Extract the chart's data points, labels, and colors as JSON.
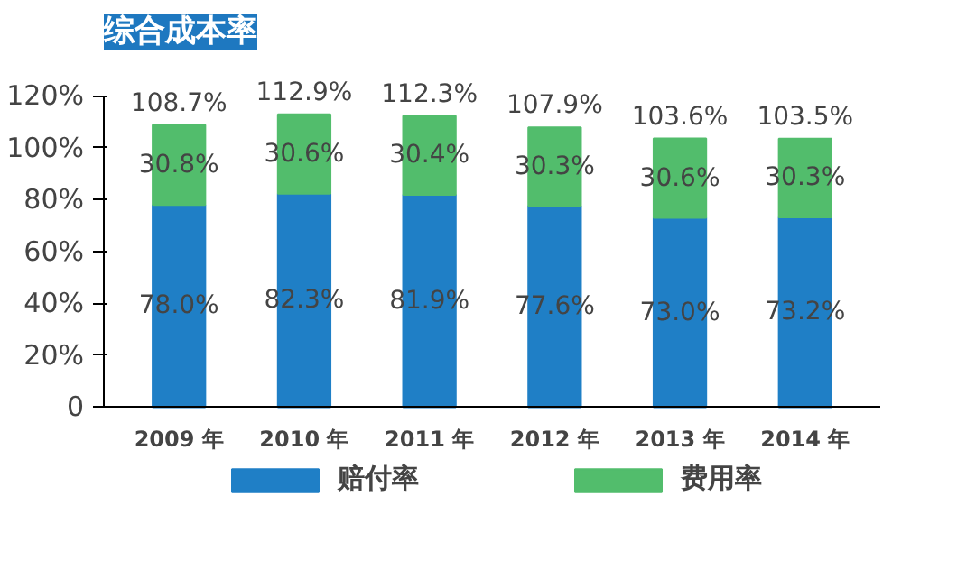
{
  "chart_data": {
    "type": "bar",
    "title": "综合成本率",
    "stacked": true,
    "categories": [
      "2009 年",
      "2010 年",
      "2011 年",
      "2012 年",
      "2013 年",
      "2014 年"
    ],
    "series": [
      {
        "name": "赔付率",
        "color": "#1f7fc6",
        "values": [
          78.0,
          82.3,
          81.9,
          77.6,
          73.0,
          73.2
        ],
        "value_labels": [
          "78.0%",
          "82.3%",
          "81.9%",
          "77.6%",
          "73.0%",
          "73.2%"
        ]
      },
      {
        "name": "费用率",
        "color": "#52bd6c",
        "values": [
          30.8,
          30.6,
          30.4,
          30.3,
          30.6,
          30.3
        ],
        "value_labels": [
          "30.8%",
          "30.6%",
          "30.4%",
          "30.3%",
          "30.6%",
          "30.3%"
        ]
      }
    ],
    "totals": [
      "108.7%",
      "112.9%",
      "112.3%",
      "107.9%",
      "103.6%",
      "103.5%"
    ],
    "ylim": [
      0,
      120
    ],
    "yticks": [
      0,
      {
        "value": 20,
        "label": "20%"
      },
      {
        "value": 40,
        "label": "40%"
      },
      {
        "value": 60,
        "label": "60%"
      },
      {
        "value": 80,
        "label": "80%"
      },
      {
        "value": 100,
        "label": "100%"
      },
      {
        "value": 120,
        "label": "120%"
      }
    ],
    "grid": false,
    "legend": "bottom"
  }
}
